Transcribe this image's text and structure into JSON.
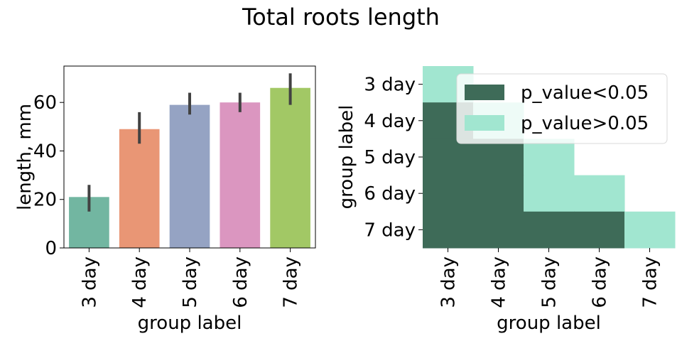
{
  "figure": {
    "title": "Total roots length"
  },
  "chart_data": [
    {
      "type": "bar",
      "title": "",
      "xlabel": "group label",
      "ylabel": "length, mm",
      "categories": [
        "3 day",
        "4 day",
        "5 day",
        "6 day",
        "7 day"
      ],
      "values": [
        21,
        49,
        59,
        60,
        66
      ],
      "error_low": [
        15,
        43,
        55,
        56,
        59
      ],
      "error_high": [
        26,
        56,
        64,
        64,
        72
      ],
      "ylim": [
        0,
        75
      ],
      "yticks": [
        0,
        20,
        40,
        60
      ],
      "colors": [
        "#72b6a1",
        "#e99675",
        "#95a3c3",
        "#db96c0",
        "#a2c865"
      ],
      "errorbar_color": "#424242",
      "grid": false
    },
    {
      "type": "heatmap",
      "title": "",
      "xlabel": "group label",
      "ylabel": "group label",
      "x": [
        "3 day",
        "4 day",
        "5 day",
        "6 day",
        "7 day"
      ],
      "y": [
        "3 day",
        "4 day",
        "5 day",
        "6 day",
        "7 day"
      ],
      "cells": [
        [
          1,
          null,
          null,
          null,
          null
        ],
        [
          0,
          1,
          null,
          null,
          null
        ],
        [
          0,
          0,
          1,
          null,
          null
        ],
        [
          0,
          0,
          1,
          1,
          null
        ],
        [
          0,
          0,
          0,
          0,
          1
        ]
      ],
      "legend": {
        "placement": "upper-right",
        "entries": [
          {
            "label": "p_value<0.05",
            "value": 0,
            "color": "#3e6b58"
          },
          {
            "label": "p_value>0.05",
            "value": 1,
            "color": "#a1e6d0"
          }
        ]
      },
      "grid": false
    }
  ]
}
